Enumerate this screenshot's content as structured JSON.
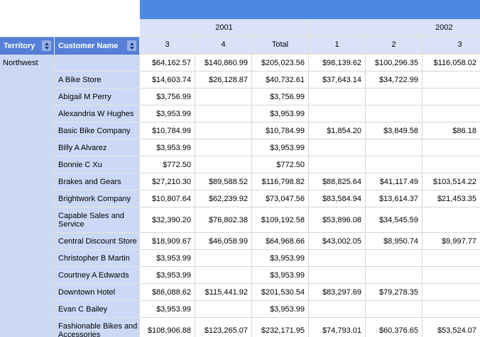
{
  "report": {
    "type": "matrix-report",
    "colors": {
      "top_band": "#4d89e0",
      "header_blue": "#5680d7",
      "light_header_blue": "#dae2f8",
      "row_label_blue": "#cbd8f6",
      "grid_gray": "#d6d6d6",
      "header_grid_tan": "#e9dfc9"
    }
  },
  "table": {
    "row_header_labels": {
      "territory": "Territory",
      "customer": "Customer Name"
    },
    "year_groups": [
      {
        "label": "2001"
      },
      {
        "label": "2002"
      }
    ],
    "quarter_headers": [
      "3",
      "4",
      "Total",
      "1",
      "2",
      "3"
    ],
    "territory_value": "Northwest",
    "rows": [
      {
        "territory": "Northwest",
        "customer": "",
        "values": [
          "$64,162.57",
          "$140,860.99",
          "$205,023.56",
          "$98,139.62",
          "$100,296.35",
          "$116,058.02"
        ]
      },
      {
        "territory": "",
        "customer": "A Bike Store",
        "values": [
          "$14,603.74",
          "$26,128.87",
          "$40,732.61",
          "$37,643.14",
          "$34,722.99",
          ""
        ]
      },
      {
        "territory": "",
        "customer": "Abigail M Perry",
        "values": [
          "$3,756.99",
          "",
          "$3,756.99",
          "",
          "",
          ""
        ]
      },
      {
        "territory": "",
        "customer": "Alexandria W Hughes",
        "values": [
          "$3,953.99",
          "",
          "$3,953.99",
          "",
          "",
          ""
        ]
      },
      {
        "territory": "",
        "customer": "Basic Bike Company",
        "values": [
          "$10,784.99",
          "",
          "$10,784.99",
          "$1,854.20",
          "$3,849.58",
          "$86.18"
        ]
      },
      {
        "territory": "",
        "customer": "Billy A Alvarez",
        "values": [
          "$3,953.99",
          "",
          "$3,953.99",
          "",
          "",
          ""
        ]
      },
      {
        "territory": "",
        "customer": "Bonnie C Xu",
        "values": [
          "$772.50",
          "",
          "$772.50",
          "",
          "",
          ""
        ]
      },
      {
        "territory": "",
        "customer": "Brakes and Gears",
        "values": [
          "$27,210.30",
          "$89,588.52",
          "$116,798.82",
          "$88,825.64",
          "$41,117.49",
          "$103,514.22"
        ]
      },
      {
        "territory": "",
        "customer": "Brightwork Company",
        "values": [
          "$10,807.64",
          "$62,239.92",
          "$73,047.56",
          "$83,584.94",
          "$13,614.37",
          "$21,453.35"
        ]
      },
      {
        "territory": "",
        "customer": "Capable Sales and Service",
        "tall": true,
        "values": [
          "$32,390.20",
          "$76,802.38",
          "$109,192.58",
          "$53,896.08",
          "$34,545.59",
          ""
        ]
      },
      {
        "territory": "",
        "customer": "Central Discount Store",
        "values": [
          "$18,909.67",
          "$46,058.99",
          "$64,968.66",
          "$43,002.05",
          "$8,950.74",
          "$9,997.77"
        ]
      },
      {
        "territory": "",
        "customer": "Christopher B Martin",
        "values": [
          "$3,953.99",
          "",
          "$3,953.99",
          "",
          "",
          ""
        ]
      },
      {
        "territory": "",
        "customer": "Courtney A Edwards",
        "values": [
          "$3,953.99",
          "",
          "$3,953.99",
          "",
          "",
          ""
        ]
      },
      {
        "territory": "",
        "customer": "Downtown Hotel",
        "values": [
          "$86,088.62",
          "$115,441.92",
          "$201,530.54",
          "$83,297.69",
          "$79,278.35",
          ""
        ]
      },
      {
        "territory": "",
        "customer": "Evan C Bailey",
        "values": [
          "$3,953.99",
          "",
          "$3,953.99",
          "",
          "",
          ""
        ]
      },
      {
        "territory": "",
        "customer": "Fashionable Bikes and Accessories",
        "tall": true,
        "values": [
          "$108,906.88",
          "$123,265.07",
          "$232,171.95",
          "$74,793.01",
          "$60,376.65",
          "$53,524.07"
        ]
      }
    ]
  }
}
